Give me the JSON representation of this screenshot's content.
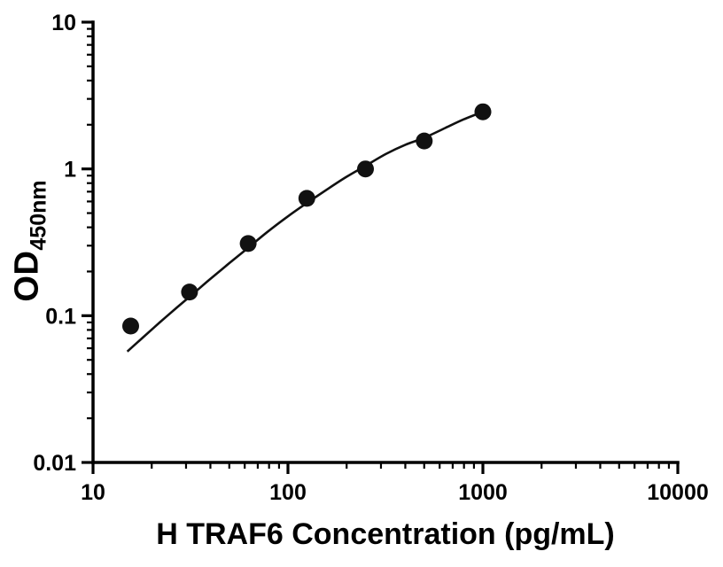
{
  "chart_data": {
    "type": "scatter",
    "title": "",
    "xlabel": "H TRAF6 Concentration (pg/mL)",
    "ylabel_main": "OD",
    "ylabel_sub": "450nm",
    "x_scale": "log",
    "y_scale": "log",
    "xlim": [
      10,
      10000
    ],
    "ylim": [
      0.01,
      10
    ],
    "x_ticks": [
      10,
      100,
      1000,
      10000
    ],
    "x_tick_labels": [
      "10",
      "100",
      "1000",
      "10000"
    ],
    "y_ticks": [
      0.01,
      0.1,
      1,
      10
    ],
    "y_tick_labels": [
      "0.01",
      "0.1",
      "1",
      "10"
    ],
    "grid": false,
    "legend": "none",
    "axis_color": "#000000",
    "marker_color": "#111111",
    "line_color": "#111111",
    "points": [
      {
        "x": 15.6,
        "y": 0.085
      },
      {
        "x": 31.25,
        "y": 0.145
      },
      {
        "x": 62.5,
        "y": 0.31
      },
      {
        "x": 125,
        "y": 0.63
      },
      {
        "x": 250,
        "y": 1.0
      },
      {
        "x": 500,
        "y": 1.55
      },
      {
        "x": 1000,
        "y": 2.45
      }
    ],
    "fit_curve": [
      [
        15,
        0.057
      ],
      [
        18,
        0.071
      ],
      [
        22,
        0.09
      ],
      [
        27,
        0.114
      ],
      [
        33,
        0.143
      ],
      [
        40,
        0.178
      ],
      [
        50,
        0.228
      ],
      [
        62.5,
        0.29
      ],
      [
        78,
        0.37
      ],
      [
        100,
        0.475
      ],
      [
        125,
        0.585
      ],
      [
        160,
        0.73
      ],
      [
        200,
        0.885
      ],
      [
        250,
        1.05
      ],
      [
        320,
        1.27
      ],
      [
        400,
        1.46
      ],
      [
        500,
        1.63
      ],
      [
        640,
        1.9
      ],
      [
        800,
        2.18
      ],
      [
        1000,
        2.45
      ]
    ]
  }
}
